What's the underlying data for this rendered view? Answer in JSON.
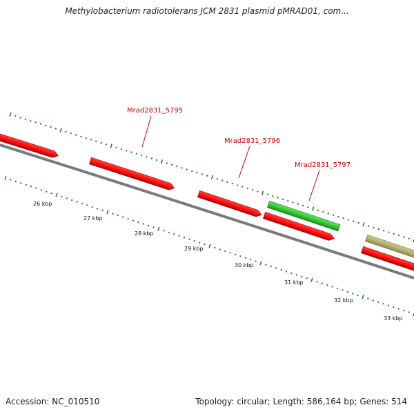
{
  "title": "Methylobacterium radiotolerans JCM 2831 plasmid pMRAD01, com...",
  "footer": {
    "accession": "Accession: NC_010510",
    "stats": "Topology: circular; Length: 586,164 bp; Genes: 514"
  },
  "colors": {
    "forward_gene": "#ff1a1a",
    "reverse_gene": "#33cc33",
    "other_gene": "#b5b070",
    "backbone": "#7a7a7a",
    "ticks": "#1e7a1e",
    "gene_label": "#cc0000"
  },
  "gene_labels": [
    {
      "id": "g5795",
      "text": "Mrad2831_5795"
    },
    {
      "id": "g5796",
      "text": "Mrad2831_5796"
    },
    {
      "id": "g5797",
      "text": "Mrad2831_5797"
    }
  ],
  "kbp_labels": [
    "26 kbp",
    "27 kbp",
    "28 kbp",
    "29 kbp",
    "30 kbp",
    "31 kbp",
    "32 kbp",
    "33 kbp"
  ],
  "genes": [
    {
      "id": "gA",
      "strand": "forward"
    },
    {
      "id": "g5795",
      "strand": "forward"
    },
    {
      "id": "g5796",
      "strand": "forward"
    },
    {
      "id": "g5797",
      "strand": "forward"
    },
    {
      "id": "gR1",
      "strand": "reverse"
    },
    {
      "id": "gT1",
      "strand": "other"
    },
    {
      "id": "gE1",
      "strand": "forward"
    }
  ]
}
